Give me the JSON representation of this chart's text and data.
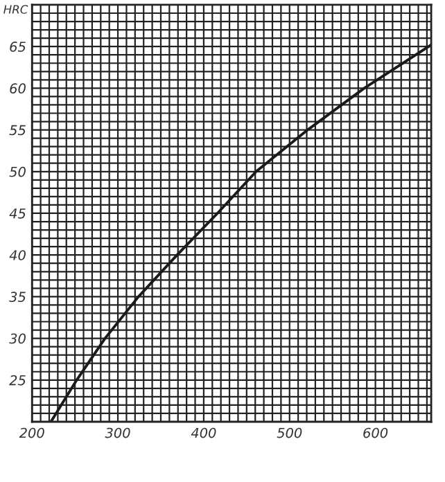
{
  "chart_data": {
    "type": "line",
    "ylabel": "HRC",
    "x": [
      222,
      252,
      285,
      324,
      369,
      416,
      461,
      521,
      587,
      665
    ],
    "series": [
      {
        "color": "#1a1a1a",
        "values": [
          20,
          25,
          30,
          35,
          40,
          45,
          50,
          55,
          60,
          65.2
        ]
      }
    ],
    "xlim": [
      200,
      665
    ],
    "ylim": [
      20,
      70
    ],
    "xticks": [
      200,
      {
        "value": 210,
        "label": null
      },
      {
        "value": 220,
        "label": null
      },
      {
        "value": 230,
        "label": null
      },
      {
        "value": 240,
        "label": null
      },
      {
        "value": 250,
        "label": null
      },
      {
        "value": 260,
        "label": null
      },
      {
        "value": 270,
        "label": null
      },
      {
        "value": 280,
        "label": null
      },
      {
        "value": 290,
        "label": null
      },
      300,
      {
        "value": 310,
        "label": null
      },
      {
        "value": 320,
        "label": null
      },
      {
        "value": 330,
        "label": null
      },
      {
        "value": 340,
        "label": null
      },
      {
        "value": 350,
        "label": null
      },
      {
        "value": 360,
        "label": null
      },
      {
        "value": 370,
        "label": null
      },
      {
        "value": 380,
        "label": null
      },
      {
        "value": 390,
        "label": null
      },
      400,
      {
        "value": 410,
        "label": null
      },
      {
        "value": 420,
        "label": null
      },
      {
        "value": 430,
        "label": null
      },
      {
        "value": 440,
        "label": null
      },
      {
        "value": 450,
        "label": null
      },
      {
        "value": 460,
        "label": null
      },
      {
        "value": 470,
        "label": null
      },
      {
        "value": 480,
        "label": null
      },
      {
        "value": 490,
        "label": null
      },
      500,
      {
        "value": 510,
        "label": null
      },
      {
        "value": 520,
        "label": null
      },
      {
        "value": 530,
        "label": null
      },
      {
        "value": 540,
        "label": null
      },
      {
        "value": 550,
        "label": null
      },
      {
        "value": 560,
        "label": null
      },
      {
        "value": 570,
        "label": null
      },
      {
        "value": 580,
        "label": null
      },
      {
        "value": 590,
        "label": null
      },
      600,
      {
        "value": 610,
        "label": null
      },
      {
        "value": 620,
        "label": null
      },
      {
        "value": 630,
        "label": null
      },
      {
        "value": 640,
        "label": null
      },
      {
        "value": 650,
        "label": null
      },
      {
        "value": 660,
        "label": null
      }
    ],
    "yticks": [
      {
        "value": 20,
        "label": null
      },
      {
        "value": 21,
        "label": null
      },
      {
        "value": 22,
        "label": null
      },
      {
        "value": 23,
        "label": null
      },
      {
        "value": 24,
        "label": null
      },
      25,
      {
        "value": 26,
        "label": null
      },
      {
        "value": 27,
        "label": null
      },
      {
        "value": 28,
        "label": null
      },
      {
        "value": 29,
        "label": null
      },
      30,
      {
        "value": 31,
        "label": null
      },
      {
        "value": 32,
        "label": null
      },
      {
        "value": 33,
        "label": null
      },
      {
        "value": 34,
        "label": null
      },
      35,
      {
        "value": 36,
        "label": null
      },
      {
        "value": 37,
        "label": null
      },
      {
        "value": 38,
        "label": null
      },
      {
        "value": 39,
        "label": null
      },
      40,
      {
        "value": 41,
        "label": null
      },
      {
        "value": 42,
        "label": null
      },
      {
        "value": 43,
        "label": null
      },
      {
        "value": 44,
        "label": null
      },
      45,
      {
        "value": 46,
        "label": null
      },
      {
        "value": 47,
        "label": null
      },
      {
        "value": 48,
        "label": null
      },
      {
        "value": 49,
        "label": null
      },
      50,
      {
        "value": 51,
        "label": null
      },
      {
        "value": 52,
        "label": null
      },
      {
        "value": 53,
        "label": null
      },
      {
        "value": 54,
        "label": null
      },
      55,
      {
        "value": 56,
        "label": null
      },
      {
        "value": 57,
        "label": null
      },
      {
        "value": 58,
        "label": null
      },
      {
        "value": 59,
        "label": null
      },
      60,
      {
        "value": 61,
        "label": null
      },
      {
        "value": 62,
        "label": null
      },
      {
        "value": 63,
        "label": null
      },
      {
        "value": 64,
        "label": null
      },
      65,
      {
        "value": 66,
        "label": null
      },
      {
        "value": 67,
        "label": null
      },
      {
        "value": 68,
        "label": null
      },
      {
        "value": 69,
        "label": null
      },
      {
        "value": 70,
        "label": null
      }
    ],
    "grid": true,
    "marker": "none",
    "line_style": "solid"
  }
}
